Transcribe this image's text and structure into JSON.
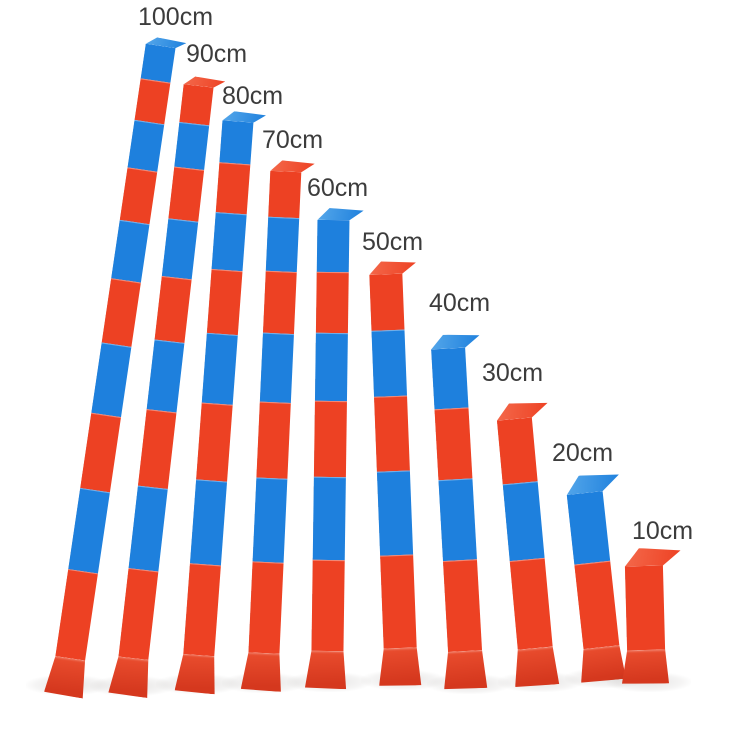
{
  "scene": {
    "subject": "Montessori red and blue number rods standing upright, arranged from longest to shortest",
    "background_color": "#ffffff"
  },
  "colors": {
    "red": "#ed4123",
    "blue": "#1e80dd",
    "red_light": "#f4694b",
    "blue_light": "#55a7ea",
    "red_mid": "#ea4d2e",
    "red_dark": "#d5381e",
    "label_text": "#3c3c3c"
  },
  "rods": [
    {
      "label": "100cm",
      "length_cm": 100,
      "segment_count": 10,
      "segments_top_to_bottom": [
        "blue",
        "red",
        "blue",
        "red",
        "blue",
        "red",
        "blue",
        "red",
        "blue",
        "red"
      ]
    },
    {
      "label": "90cm",
      "length_cm": 90,
      "segment_count": 9,
      "segments_top_to_bottom": [
        "red",
        "blue",
        "red",
        "blue",
        "red",
        "blue",
        "red",
        "blue",
        "red"
      ]
    },
    {
      "label": "80cm",
      "length_cm": 80,
      "segment_count": 8,
      "segments_top_to_bottom": [
        "blue",
        "red",
        "blue",
        "red",
        "blue",
        "red",
        "blue",
        "red"
      ]
    },
    {
      "label": "70cm",
      "length_cm": 70,
      "segment_count": 7,
      "segments_top_to_bottom": [
        "red",
        "blue",
        "red",
        "blue",
        "red",
        "blue",
        "red"
      ]
    },
    {
      "label": "60cm",
      "length_cm": 60,
      "segment_count": 6,
      "segments_top_to_bottom": [
        "blue",
        "red",
        "blue",
        "red",
        "blue",
        "red"
      ]
    },
    {
      "label": "50cm",
      "length_cm": 50,
      "segment_count": 5,
      "segments_top_to_bottom": [
        "red",
        "blue",
        "red",
        "blue",
        "red"
      ]
    },
    {
      "label": "40cm",
      "length_cm": 40,
      "segment_count": 4,
      "segments_top_to_bottom": [
        "blue",
        "red",
        "blue",
        "red"
      ]
    },
    {
      "label": "30cm",
      "length_cm": 30,
      "segment_count": 3,
      "segments_top_to_bottom": [
        "red",
        "blue",
        "red"
      ]
    },
    {
      "label": "20cm",
      "length_cm": 20,
      "segment_count": 2,
      "segments_top_to_bottom": [
        "blue",
        "red"
      ]
    },
    {
      "label": "10cm",
      "length_cm": 10,
      "segment_count": 1,
      "segments_top_to_bottom": [
        "red"
      ]
    }
  ]
}
